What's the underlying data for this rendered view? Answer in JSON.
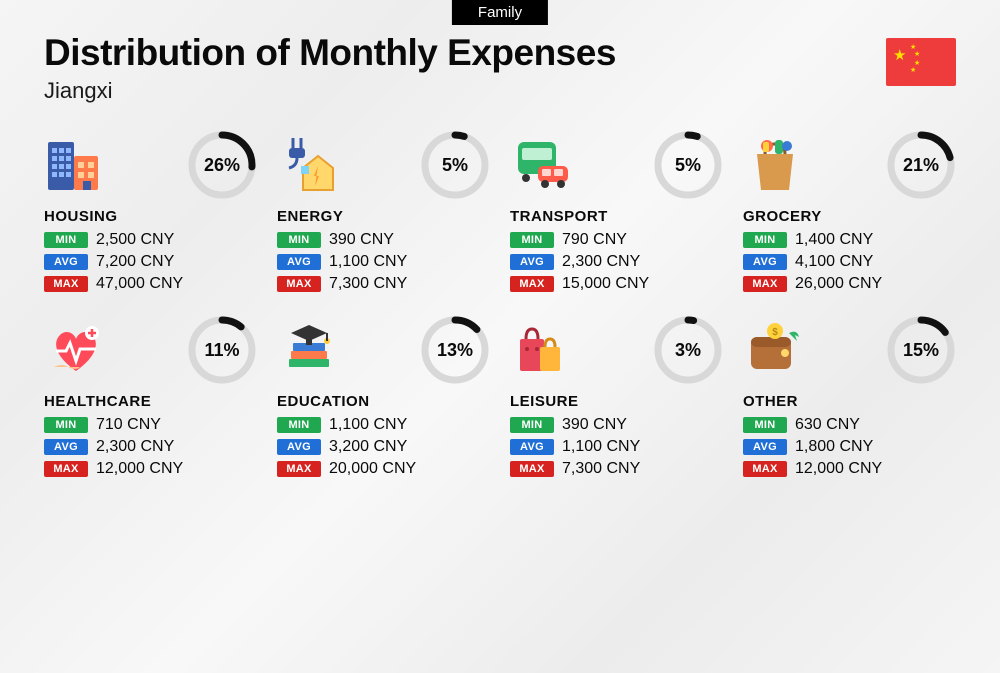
{
  "tag": "Family",
  "title": "Distribution of Monthly Expenses",
  "subtitle": "Jiangxi",
  "flag_color": "#ee3b3b",
  "flag_star_color": "#ffde00",
  "currency_suffix": " CNY",
  "badges": {
    "min": "MIN",
    "avg": "AVG",
    "max": "MAX"
  },
  "badge_colors": {
    "min": "#1fa84f",
    "avg": "#1f6fd6",
    "max": "#d6231f"
  },
  "ring": {
    "radius": 30,
    "stroke_width": 7,
    "track_color": "#d8d8d8",
    "progress_color": "#111111"
  },
  "categories": [
    {
      "key": "housing",
      "name": "HOUSING",
      "pct": 26,
      "min": "2,500",
      "avg": "7,200",
      "max": "47,000"
    },
    {
      "key": "energy",
      "name": "ENERGY",
      "pct": 5,
      "min": "390",
      "avg": "1,100",
      "max": "7,300"
    },
    {
      "key": "transport",
      "name": "TRANSPORT",
      "pct": 5,
      "min": "790",
      "avg": "2,300",
      "max": "15,000"
    },
    {
      "key": "grocery",
      "name": "GROCERY",
      "pct": 21,
      "min": "1,400",
      "avg": "4,100",
      "max": "26,000"
    },
    {
      "key": "healthcare",
      "name": "HEALTHCARE",
      "pct": 11,
      "min": "710",
      "avg": "2,300",
      "max": "12,000"
    },
    {
      "key": "education",
      "name": "EDUCATION",
      "pct": 13,
      "min": "1,100",
      "avg": "3,200",
      "max": "20,000"
    },
    {
      "key": "leisure",
      "name": "LEISURE",
      "pct": 3,
      "min": "390",
      "avg": "1,100",
      "max": "7,300"
    },
    {
      "key": "other",
      "name": "OTHER",
      "pct": 15,
      "min": "630",
      "avg": "1,800",
      "max": "12,000"
    }
  ]
}
